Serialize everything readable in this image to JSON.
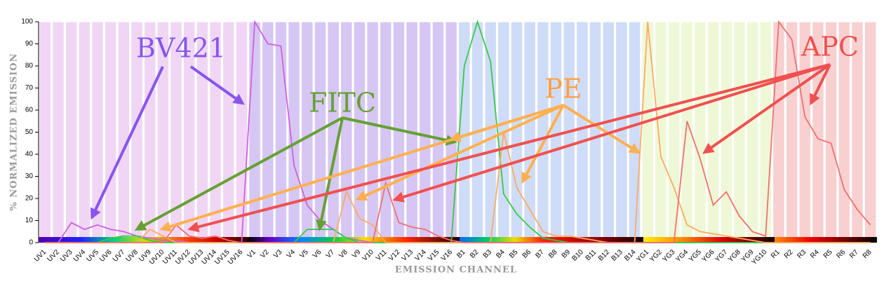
{
  "chart_data": {
    "type": "line",
    "xlabel": "EMISSION CHANNEL",
    "ylabel": "% NORMALIZED EMISSION",
    "categories": [
      "UV1",
      "UV2",
      "UV3",
      "UV4",
      "UV5",
      "UV6",
      "UV7",
      "UV8",
      "UV9",
      "UV10",
      "UV11",
      "UV12",
      "UV13",
      "UV14",
      "UV15",
      "UV16",
      "V1",
      "V2",
      "V3",
      "V4",
      "V5",
      "V6",
      "V7",
      "V8",
      "V9",
      "V10",
      "V11",
      "V12",
      "V13",
      "V14",
      "V15",
      "V16",
      "B1",
      "B2",
      "B3",
      "B4",
      "B5",
      "B6",
      "B7",
      "B8",
      "B9",
      "B10",
      "B11",
      "B12",
      "B13",
      "B14",
      "YG1",
      "YG2",
      "YG3",
      "YG4",
      "YG5",
      "YG6",
      "YG7",
      "YG8",
      "YG9",
      "YG10",
      "R1",
      "R2",
      "R3",
      "R4",
      "R5",
      "R6",
      "R7",
      "R8"
    ],
    "series": [
      {
        "name": "BV421",
        "color": "#d060e0",
        "label_color": "#8855ee",
        "values": [
          0,
          0,
          9,
          6,
          8,
          6,
          5,
          3,
          2,
          1,
          1,
          0,
          0,
          0,
          0,
          0,
          100,
          90,
          89,
          35,
          17,
          10,
          6,
          2,
          1,
          0,
          0,
          0,
          0,
          0,
          0,
          0,
          0,
          0,
          0,
          0,
          0,
          0,
          0,
          0,
          0,
          0,
          0,
          0,
          0,
          0,
          0,
          0,
          0,
          0,
          0,
          0,
          0,
          0,
          0,
          0,
          0,
          0,
          0,
          0,
          0,
          0,
          0,
          0
        ]
      },
      {
        "name": "FITC",
        "color": "#33cc44",
        "label_color": "#66a033",
        "values": [
          0,
          0,
          0,
          0,
          0,
          2,
          3,
          3,
          1,
          0,
          0,
          0,
          0,
          0,
          0,
          0,
          0,
          0,
          0,
          0,
          6,
          6,
          6,
          2,
          0,
          0,
          0,
          0,
          0,
          0,
          0,
          0,
          80,
          100,
          82,
          22,
          13,
          7,
          2,
          1,
          0,
          0,
          0,
          0,
          0,
          0,
          0,
          0,
          0,
          0,
          0,
          0,
          0,
          0,
          0,
          0,
          0,
          0,
          0,
          0,
          0,
          0,
          0,
          0
        ]
      },
      {
        "name": "PE",
        "color": "#ffaa60",
        "label_color": "#ffa040",
        "values": [
          0,
          0,
          0,
          0,
          0,
          0,
          0,
          0,
          6,
          3,
          0,
          0,
          0,
          0,
          0,
          0,
          0,
          0,
          0,
          0,
          0,
          0,
          0,
          23,
          11,
          8,
          0,
          0,
          0,
          0,
          0,
          0,
          0,
          0,
          0,
          50,
          25,
          15,
          5,
          3,
          3,
          2,
          1,
          0,
          0,
          0,
          100,
          39,
          25,
          8,
          5,
          4,
          3,
          2,
          1,
          0,
          0,
          0,
          0,
          0,
          0,
          0,
          0,
          0
        ]
      },
      {
        "name": "APC",
        "color": "#f07070",
        "label_color": "#f05050",
        "values": [
          0,
          0,
          0,
          0,
          0,
          0,
          0,
          0,
          0,
          0,
          8,
          3,
          2,
          3,
          1,
          0,
          0,
          0,
          0,
          0,
          0,
          0,
          0,
          0,
          0,
          0,
          27,
          9,
          7,
          6,
          3,
          1,
          0,
          0,
          0,
          0,
          0,
          0,
          0,
          0,
          0,
          0,
          0,
          0,
          0,
          0,
          0,
          0,
          0,
          55,
          38,
          17,
          23,
          12,
          5,
          3,
          100,
          92,
          57,
          47,
          45,
          24,
          15,
          8
        ]
      }
    ],
    "ylim": [
      0,
      100
    ],
    "yticks": [
      0,
      10,
      20,
      30,
      40,
      50,
      60,
      70,
      80,
      90,
      100
    ]
  }
}
